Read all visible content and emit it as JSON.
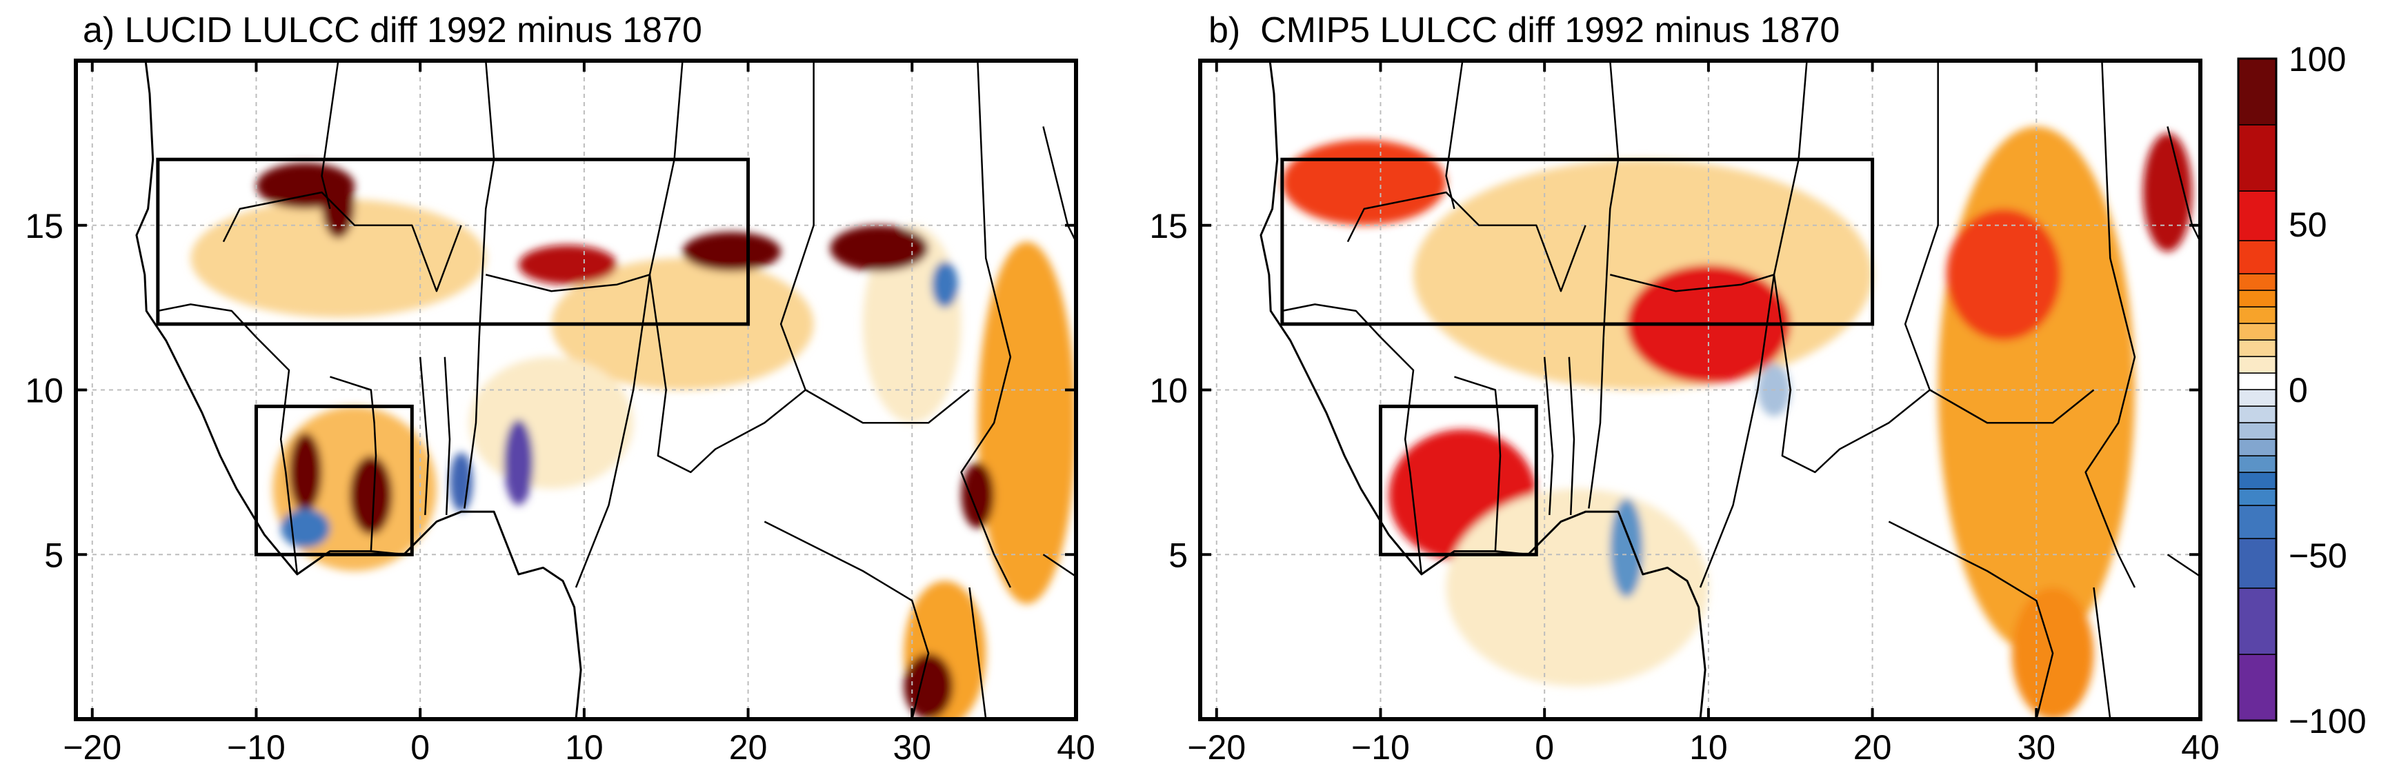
{
  "panels": [
    {
      "id": "a",
      "title": "a) LUCID LULCC diff 1992 minus 1870",
      "xlim": [
        -21,
        40
      ],
      "ylim": [
        0,
        20
      ],
      "xticks": [
        -20,
        -10,
        0,
        10,
        20,
        30,
        40
      ],
      "yticks": [
        5,
        10,
        15
      ],
      "boxes": [
        {
          "lon": [
            -16,
            20
          ],
          "lat": [
            12,
            17
          ]
        },
        {
          "lon": [
            -10,
            -0.5
          ],
          "lat": [
            5,
            9.5
          ]
        }
      ],
      "blobs": [
        {
          "lon": 16,
          "lat": 12.0,
          "rx": 8,
          "ry": 2.0,
          "v": 10
        },
        {
          "lon": -5,
          "lat": 14.0,
          "rx": 9,
          "ry": 1.8,
          "v": 10
        },
        {
          "lon": -4,
          "lat": 7.0,
          "rx": 5,
          "ry": 2.5,
          "v": 15
        },
        {
          "lon": 37,
          "lat": 9.0,
          "rx": 3,
          "ry": 5.5,
          "v": 20
        },
        {
          "lon": 30,
          "lat": 12.0,
          "rx": 3,
          "ry": 3.0,
          "v": 8
        },
        {
          "lon": 8,
          "lat": 9.0,
          "rx": 5,
          "ry": 2.0,
          "v": 8
        },
        {
          "lon": 32,
          "lat": 2.0,
          "rx": 2.5,
          "ry": 2.2,
          "v": 20
        },
        {
          "lon": -7,
          "lat": 16.2,
          "rx": 3,
          "ry": 0.7,
          "v": 95
        },
        {
          "lon": -5,
          "lat": 15.6,
          "rx": 1,
          "ry": 1.0,
          "v": 95
        },
        {
          "lon": 19,
          "lat": 14.2,
          "rx": 3,
          "ry": 0.6,
          "v": 95
        },
        {
          "lon": 28,
          "lat": 14.3,
          "rx": 3,
          "ry": 0.7,
          "v": 95
        },
        {
          "lon": 9,
          "lat": 13.8,
          "rx": 3,
          "ry": 0.6,
          "v": 70
        },
        {
          "lon": -3,
          "lat": 6.8,
          "rx": 1.3,
          "ry": 1.2,
          "v": 95
        },
        {
          "lon": -7,
          "lat": 7.5,
          "rx": 1.0,
          "ry": 1.2,
          "v": 80
        },
        {
          "lon": 34,
          "lat": 6.8,
          "rx": 1.0,
          "ry": 1.0,
          "v": 80
        },
        {
          "lon": 31,
          "lat": 1.0,
          "rx": 1.5,
          "ry": 1.0,
          "v": 80
        },
        {
          "lon": 6,
          "lat": 7.8,
          "rx": 0.9,
          "ry": 1.3,
          "v": -70
        },
        {
          "lon": 2.5,
          "lat": 7.2,
          "rx": 0.7,
          "ry": 0.9,
          "v": -55
        },
        {
          "lon": 32,
          "lat": 13.2,
          "rx": 0.8,
          "ry": 0.7,
          "v": -45
        },
        {
          "lon": -7,
          "lat": 5.8,
          "rx": 1.5,
          "ry": 0.6,
          "v": -40
        }
      ]
    },
    {
      "id": "b",
      "title": "b)  CMIP5 LULCC diff 1992 minus 1870",
      "xlim": [
        -21,
        40
      ],
      "ylim": [
        0,
        20
      ],
      "xticks": [
        -20,
        -10,
        0,
        10,
        20,
        30,
        40
      ],
      "yticks": [
        5,
        10,
        15
      ],
      "boxes": [
        {
          "lon": [
            -16,
            20
          ],
          "lat": [
            12,
            17
          ]
        },
        {
          "lon": [
            -10,
            -0.5
          ],
          "lat": [
            5,
            9.5
          ]
        }
      ],
      "blobs": [
        {
          "lon": -11,
          "lat": 16.3,
          "rx": 5,
          "ry": 1.3,
          "v": 35
        },
        {
          "lon": 6,
          "lat": 13.5,
          "rx": 14,
          "ry": 3.5,
          "v": 12
        },
        {
          "lon": 10,
          "lat": 12.0,
          "rx": 5,
          "ry": 1.8,
          "v": 45
        },
        {
          "lon": -5,
          "lat": 6.8,
          "rx": 4.5,
          "ry": 2.0,
          "v": 55
        },
        {
          "lon": 30,
          "lat": 10.0,
          "rx": 6,
          "ry": 8.0,
          "v": 20
        },
        {
          "lon": 28,
          "lat": 13.5,
          "rx": 3.5,
          "ry": 2.0,
          "v": 35
        },
        {
          "lon": 38,
          "lat": 16.0,
          "rx": 1.5,
          "ry": 1.8,
          "v": 75
        },
        {
          "lon": 2,
          "lat": 4.0,
          "rx": 8,
          "ry": 3.0,
          "v": 8
        },
        {
          "lon": 31,
          "lat": 2.0,
          "rx": 2.5,
          "ry": 2.0,
          "v": 25
        },
        {
          "lon": 5,
          "lat": 5.2,
          "rx": 1.0,
          "ry": 1.5,
          "v": -25
        },
        {
          "lon": 14,
          "lat": 10.0,
          "rx": 1.0,
          "ry": 0.8,
          "v": -15
        }
      ]
    }
  ],
  "colorbar": {
    "labels": [
      "100",
      "50",
      "0",
      "−50",
      "−100"
    ],
    "label_values": [
      100,
      50,
      0,
      -50,
      -100
    ],
    "levels": [
      -100,
      -80,
      -60,
      -45,
      -35,
      -30,
      -25,
      -20,
      -15,
      -10,
      -5,
      0,
      5,
      10,
      15,
      20,
      25,
      30,
      35,
      45,
      60,
      80,
      100
    ],
    "colors": [
      "#6a2a9a",
      "#5a45a8",
      "#3c63b2",
      "#3e77be",
      "#3e84c6",
      "#2e6fb8",
      "#5b93c7",
      "#82a6cf",
      "#a9c1dd",
      "#c5d5e8",
      "#dfe7f2",
      "#ffffff",
      "#fbeac6",
      "#fad694",
      "#f9bb5b",
      "#f7a32a",
      "#f58a12",
      "#f36b10",
      "#f03c12",
      "#e21515",
      "#b40b0b",
      "#6a0606",
      "#1a0000"
    ]
  },
  "colors": {
    "border": "#000000",
    "gridline": "#bdbdbd",
    "background": "#ffffff"
  }
}
